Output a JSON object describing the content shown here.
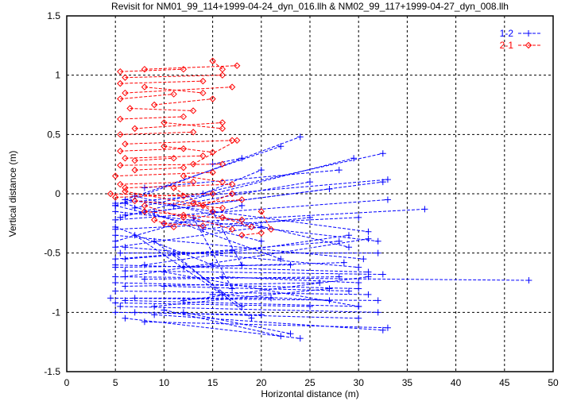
{
  "chart_data": {
    "type": "line",
    "title": "Revisit for NM01_99_114+1999-04-24_dyn_016.llh & NM02_99_117+1999-04-27_dyn_008.llh",
    "xlabel": "Horizontal distance (m)",
    "ylabel": "Vertical distance (m)",
    "xlim": [
      0,
      50
    ],
    "ylim": [
      -1.5,
      1.5
    ],
    "xticks": [
      "0",
      "5",
      "10",
      "15",
      "20",
      "25",
      "30",
      "35",
      "40",
      "45",
      "50"
    ],
    "yticks": [
      "-1.5",
      "-1",
      "-0.5",
      "0",
      "0.5",
      "1",
      "1.5"
    ],
    "grid": true,
    "legend_position": "top-right",
    "series": [
      {
        "name": "1-2",
        "color": "#0000ff",
        "marker": "plus",
        "segments": [
          [
            5,
            -0.1,
            24,
            0.48
          ],
          [
            6,
            -0.05,
            22,
            0.4
          ],
          [
            7,
            -0.12,
            32.5,
            0.34
          ],
          [
            5.5,
            -0.2,
            29.5,
            0.3
          ],
          [
            8,
            0.05,
            28,
            0.2
          ],
          [
            5,
            -0.08,
            33,
            0.12
          ],
          [
            9,
            -0.15,
            32.5,
            0.1
          ],
          [
            6,
            -0.18,
            27,
            0.04
          ],
          [
            5,
            -0.22,
            33,
            -0.05
          ],
          [
            10,
            -0.25,
            36.8,
            -0.13
          ],
          [
            5,
            -0.3,
            30,
            -0.2
          ],
          [
            6,
            -0.05,
            31,
            -0.32
          ],
          [
            5,
            -0.15,
            32,
            -0.4
          ],
          [
            7,
            -0.02,
            29,
            -0.45
          ],
          [
            5,
            -0.35,
            30.5,
            -0.55
          ],
          [
            6,
            -0.45,
            30,
            -0.62
          ],
          [
            5.5,
            -0.5,
            32,
            -0.5
          ],
          [
            5,
            -0.6,
            31,
            -0.66
          ],
          [
            5,
            -0.7,
            47.5,
            -0.73
          ],
          [
            6,
            -0.65,
            32.5,
            -0.68
          ],
          [
            5,
            -0.75,
            30,
            -0.8
          ],
          [
            4.5,
            -0.88,
            32,
            -0.9
          ],
          [
            5,
            -0.82,
            31,
            -0.85
          ],
          [
            6,
            -0.9,
            30,
            -0.95
          ],
          [
            5.5,
            -0.95,
            32,
            -1.0
          ],
          [
            7,
            -1.0,
            30,
            -1.05
          ],
          [
            8,
            -1.08,
            33,
            -1.13
          ],
          [
            9,
            -1.02,
            32.5,
            -1.15
          ],
          [
            6,
            -1.05,
            24,
            -1.22
          ],
          [
            10,
            -0.98,
            22,
            -1.2
          ],
          [
            12,
            -1.0,
            23,
            -1.18
          ],
          [
            5,
            -0.4,
            18,
            -0.1
          ],
          [
            5,
            -0.45,
            20,
            -0.28
          ],
          [
            6,
            -0.55,
            17,
            -0.48
          ],
          [
            8,
            -0.72,
            28,
            -0.7
          ],
          [
            10,
            -0.78,
            29,
            -0.82
          ],
          [
            12,
            -0.62,
            28.5,
            -0.58
          ],
          [
            5,
            -0.1,
            20,
            -0.4
          ],
          [
            6,
            -0.08,
            22,
            -0.55
          ],
          [
            14,
            -0.3,
            25,
            -0.2
          ],
          [
            15,
            -0.85,
            27,
            -0.9
          ],
          [
            16,
            -0.7,
            30,
            -0.75
          ],
          [
            5,
            -0.28,
            15,
            -0.6
          ],
          [
            7,
            -0.35,
            16,
            -0.85
          ],
          [
            9,
            -0.4,
            18,
            -0.95
          ],
          [
            11,
            -0.5,
            19,
            -1.05
          ],
          [
            13,
            -0.2,
            17,
            -0.8
          ],
          [
            15,
            -0.15,
            18,
            -0.6
          ],
          [
            5,
            -0.92,
            25,
            -0.95
          ],
          [
            6,
            -0.78,
            26,
            -0.75
          ],
          [
            5,
            -0.62,
            23,
            -0.6
          ],
          [
            7,
            -0.88,
            21,
            -0.88
          ],
          [
            5,
            -1.0,
            20,
            -1.02
          ],
          [
            11,
            -0.1,
            25,
            0.1
          ],
          [
            14,
            0.0,
            20,
            0.2
          ],
          [
            15,
            0.25,
            18,
            0.3
          ],
          [
            8,
            -0.6,
            29,
            -0.35
          ],
          [
            6,
            -0.7,
            31,
            -0.38
          ],
          [
            5,
            -0.55,
            28,
            -0.4
          ],
          [
            12,
            -0.9,
            31,
            -0.7
          ],
          [
            9,
            -0.95,
            27,
            -0.8
          ],
          [
            10,
            -0.66,
            30,
            -0.95
          ]
        ]
      },
      {
        "name": "2-1",
        "color": "#ff0000",
        "marker": "diamond",
        "segments": [
          [
            5.5,
            1.03,
            12,
            1.05
          ],
          [
            8,
            1.05,
            17.5,
            1.08
          ],
          [
            6,
            0.98,
            16,
            1.0
          ],
          [
            5.5,
            0.93,
            14,
            0.95
          ],
          [
            6,
            0.85,
            17,
            0.9
          ],
          [
            5.5,
            0.8,
            11,
            0.84
          ],
          [
            6.5,
            0.72,
            13,
            0.7
          ],
          [
            5.5,
            0.63,
            12,
            0.65
          ],
          [
            7,
            0.55,
            16,
            0.6
          ],
          [
            5.5,
            0.5,
            13,
            0.52
          ],
          [
            6,
            0.42,
            17,
            0.45
          ],
          [
            5.5,
            0.36,
            12,
            0.38
          ],
          [
            6,
            0.3,
            14,
            0.32
          ],
          [
            5.5,
            0.24,
            16,
            0.25
          ],
          [
            7,
            0.2,
            12,
            0.22
          ],
          [
            5,
            0.15,
            15,
            0.18
          ],
          [
            5.5,
            0.08,
            13,
            0.1
          ],
          [
            6,
            0.05,
            17,
            0.08
          ],
          [
            4.5,
            0.0,
            12,
            -0.02
          ],
          [
            5,
            -0.03,
            15,
            0.0
          ],
          [
            6,
            0.02,
            14,
            -0.1
          ],
          [
            7,
            -0.06,
            16,
            -0.12
          ],
          [
            8,
            -0.15,
            18,
            -0.22
          ],
          [
            10,
            -0.25,
            14,
            -0.27
          ],
          [
            12,
            -0.18,
            17,
            -0.3
          ],
          [
            13,
            -0.08,
            18,
            -0.05
          ],
          [
            14,
            -0.1,
            17,
            0.0
          ],
          [
            16,
            -0.2,
            19,
            -0.28
          ],
          [
            20,
            -0.15,
            21,
            -0.3
          ],
          [
            18,
            -0.35,
            20,
            -0.33
          ],
          [
            9,
            -0.22,
            11,
            -0.28
          ],
          [
            8,
            -0.1,
            12,
            -0.2
          ],
          [
            11,
            0.05,
            15,
            -0.15
          ],
          [
            12,
            0.15,
            16,
            0.1
          ],
          [
            10,
            0.4,
            15,
            0.35
          ],
          [
            9,
            0.75,
            15,
            0.8
          ],
          [
            8,
            0.9,
            14,
            0.85
          ],
          [
            10,
            0.6,
            16,
            0.55
          ],
          [
            7,
            0.28,
            11,
            0.3
          ],
          [
            13,
            0.25,
            17.5,
            0.45
          ],
          [
            15,
            1.12,
            16,
            1.05
          ]
        ]
      }
    ]
  }
}
